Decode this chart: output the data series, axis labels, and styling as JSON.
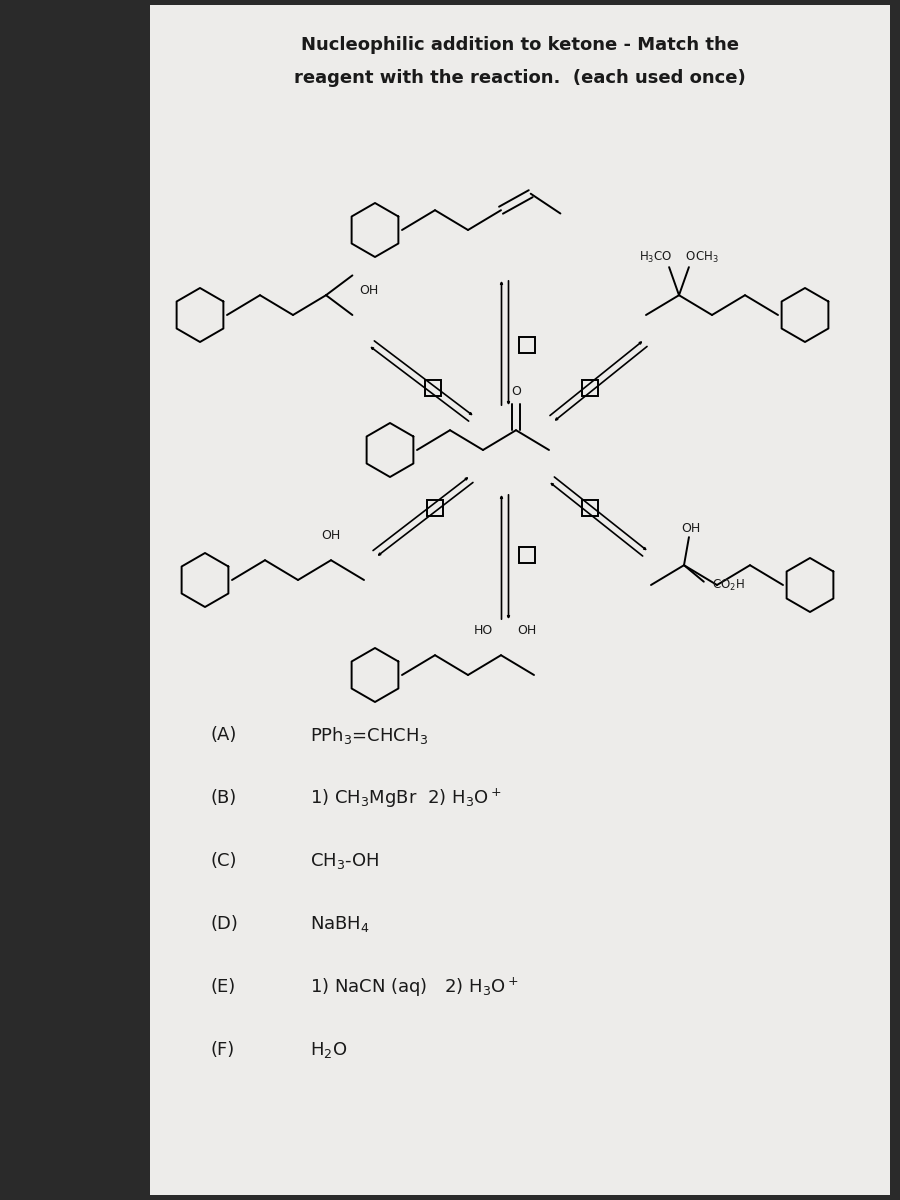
{
  "title_line1": "Nucleophilic addition to ketone - Match the",
  "title_line2": "reagent with the reaction.  (each used once)",
  "bg_color": "#2a2a2a",
  "paper_color": "#edecea",
  "text_color": "#1a1a1a",
  "reagents": [
    {
      "label": "(A)",
      "text": "PPh$_3$=CHCH$_3$"
    },
    {
      "label": "(B)",
      "text": "1) CH$_3$MgBr  2) H$_3$O$^+$"
    },
    {
      "label": "(C)",
      "text": "CH$_3$-OH"
    },
    {
      "label": "(D)",
      "text": "NaBH$_4$"
    },
    {
      "label": "(E)",
      "text": "1) NaCN (aq)   2) H$_3$O$^+$"
    },
    {
      "label": "(F)",
      "text": "H$_2$O"
    }
  ],
  "font_size_title": 13,
  "font_size_reagents": 13
}
